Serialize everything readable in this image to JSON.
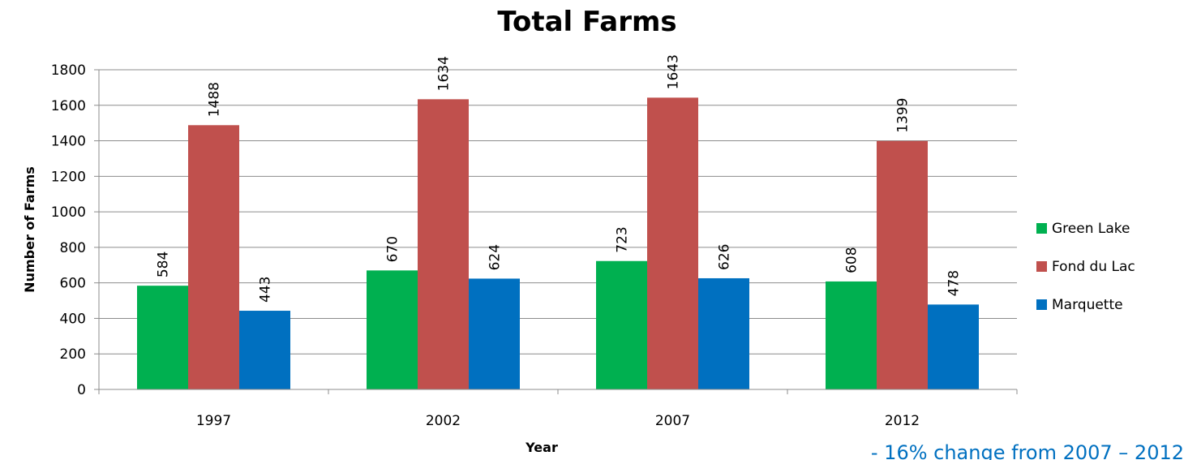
{
  "chart_data": {
    "type": "bar",
    "title": "Total Farms",
    "xlabel": "Year",
    "ylabel": "Number of Farms",
    "categories": [
      "1997",
      "2002",
      "2007",
      "2012"
    ],
    "series": [
      {
        "name": "Green Lake",
        "values": [
          584,
          670,
          723,
          608
        ],
        "color": "#00b050"
      },
      {
        "name": "Fond du Lac",
        "values": [
          1488,
          1634,
          1643,
          1399
        ],
        "color": "#c0504d"
      },
      {
        "name": "Marquette",
        "values": [
          443,
          624,
          626,
          478
        ],
        "color": "#0070c0"
      }
    ],
    "ylim": [
      0,
      1800
    ],
    "yticks": [
      0,
      200,
      400,
      600,
      800,
      1000,
      1200,
      1400,
      1600,
      1800
    ],
    "grid": true,
    "legend_position": "right",
    "data_labels": true,
    "annotation": "- 16% change from 2007 – 2012"
  }
}
